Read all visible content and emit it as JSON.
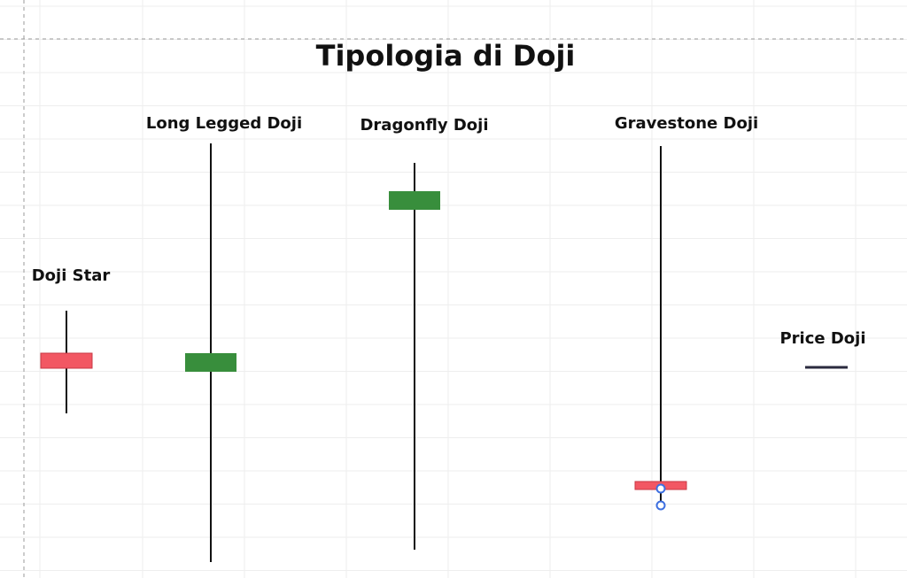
{
  "title": "Tipologia di Doji",
  "colors": {
    "bullish": "#388e3c",
    "bearish": "#f25763",
    "wick": "#111111",
    "price_line": "#2a2a3e",
    "handle": "#3d6fe0",
    "grid": "#eeeeee"
  },
  "candles": [
    {
      "id": "doji-star",
      "name": "Doji Star",
      "direction": "bearish"
    },
    {
      "id": "long-legged",
      "name": "Long Legged Doji",
      "direction": "bullish"
    },
    {
      "id": "dragonfly",
      "name": "Dragonfly Doji",
      "direction": "bullish"
    },
    {
      "id": "gravestone",
      "name": "Gravestone Doji",
      "direction": "bearish",
      "selected": true
    },
    {
      "id": "price-doji",
      "name": "Price Doji",
      "direction": "flat"
    }
  ]
}
